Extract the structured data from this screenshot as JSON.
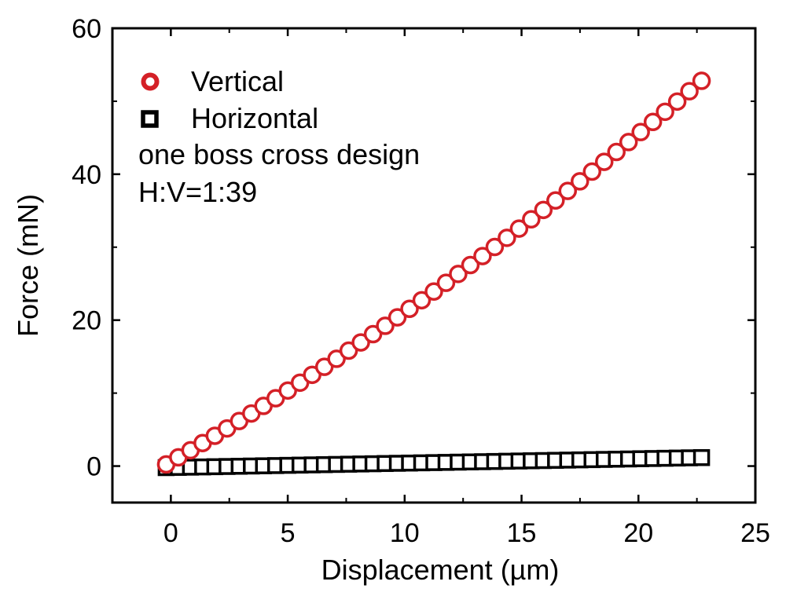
{
  "chart_data": {
    "type": "scatter",
    "xlabel": "Displacement (µm)",
    "ylabel": "Force (mN)",
    "xlim": [
      -2.5,
      25
    ],
    "ylim": [
      -5,
      60
    ],
    "xticks": [
      0,
      5,
      10,
      15,
      20,
      25
    ],
    "yticks": [
      0,
      20,
      40,
      60
    ],
    "xtick_labels": [
      "0",
      "5",
      "10",
      "15",
      "20",
      "25"
    ],
    "ytick_labels": [
      "0",
      "20",
      "40",
      "60"
    ],
    "legend_position": "top-left",
    "annotations": [
      "one boss cross design",
      "H:V=1:39"
    ],
    "series": [
      {
        "name": "Vertical",
        "marker": "circle",
        "color": "#d42027",
        "x_start": -0.2,
        "x_end": 22.7,
        "count": 45,
        "model": "y = 0.6 + 1.85 x + 0.0198 x^2",
        "coefficients": [
          0.6,
          1.85,
          0.0198
        ]
      },
      {
        "name": "Horizontal",
        "marker": "square",
        "color": "#000000",
        "x_start": -0.2,
        "x_end": 22.7,
        "count": 45,
        "model": "y = -0.2 + 0.06 x",
        "coefficients": [
          -0.2,
          0.06,
          0
        ]
      }
    ]
  }
}
